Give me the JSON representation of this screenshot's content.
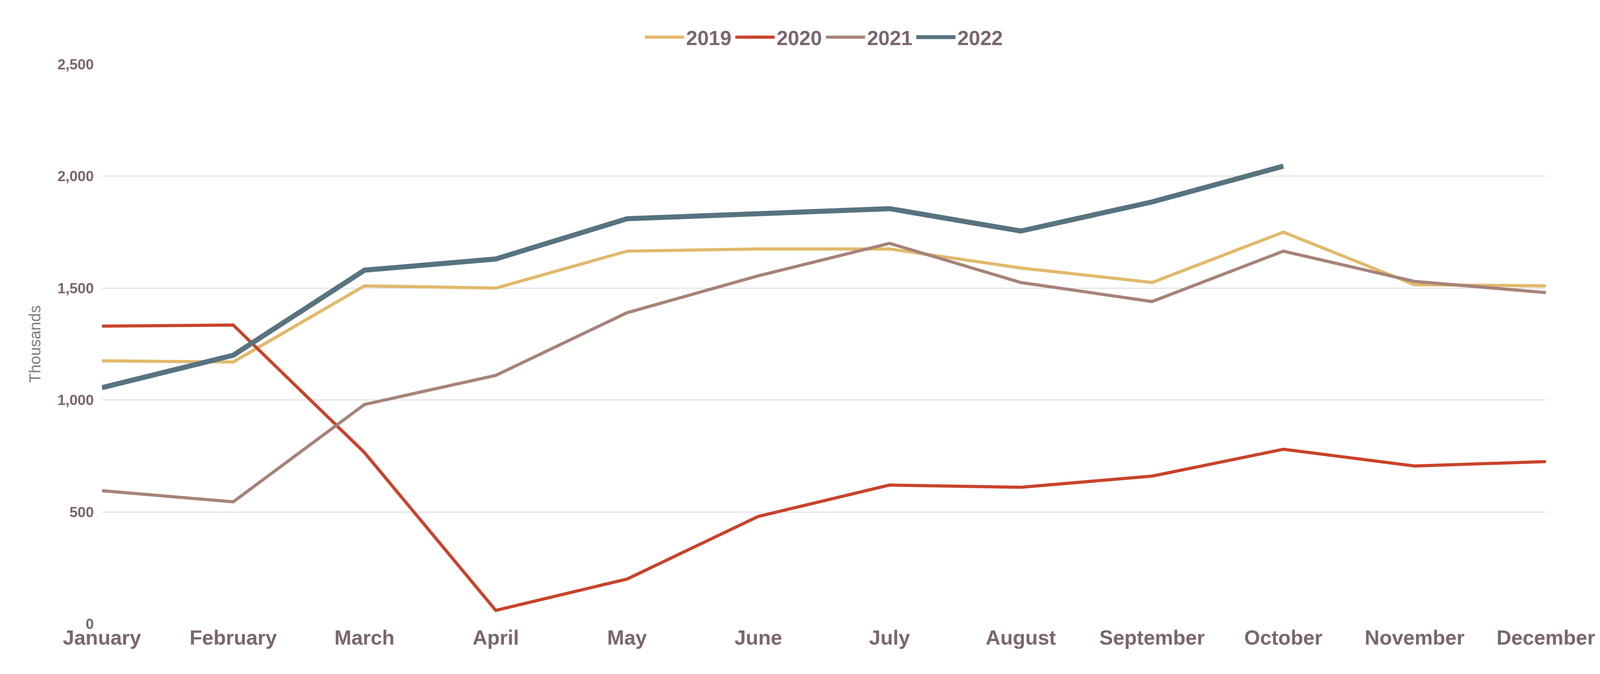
{
  "chart_data": {
    "type": "line",
    "y_label": "Thousands",
    "categories": [
      "January",
      "February",
      "March",
      "April",
      "May",
      "June",
      "July",
      "August",
      "September",
      "October",
      "November",
      "December"
    ],
    "series": [
      {
        "name": "2019",
        "color": "#E1B96B",
        "values": [
          1175,
          1170,
          1510,
          1500,
          1665,
          1675,
          1675,
          1590,
          1525,
          1750,
          1515,
          1510
        ]
      },
      {
        "name": "2020",
        "color": "#C9432B",
        "values": [
          1330,
          1335,
          765,
          60,
          200,
          480,
          620,
          610,
          660,
          780,
          705,
          725
        ]
      },
      {
        "name": "2021",
        "color": "#A68378",
        "values": [
          595,
          545,
          980,
          1110,
          1390,
          1555,
          1700,
          1525,
          1440,
          1665,
          1530,
          1480
        ]
      },
      {
        "name": "2022",
        "color": "#587380",
        "values": [
          1055,
          1200,
          1580,
          1630,
          1810,
          1835,
          1855,
          1755,
          1885,
          2045,
          null,
          null
        ]
      }
    ],
    "ylim": [
      0,
      2500
    ],
    "yticks": [
      0,
      500,
      {
        "value": 1000,
        "label": "1,000"
      },
      {
        "value": 1500,
        "label": "1,500"
      },
      {
        "value": 2000,
        "label": "2,000"
      },
      {
        "value": 2500,
        "label": "2,500"
      }
    ],
    "grid": true,
    "legend": "top"
  }
}
